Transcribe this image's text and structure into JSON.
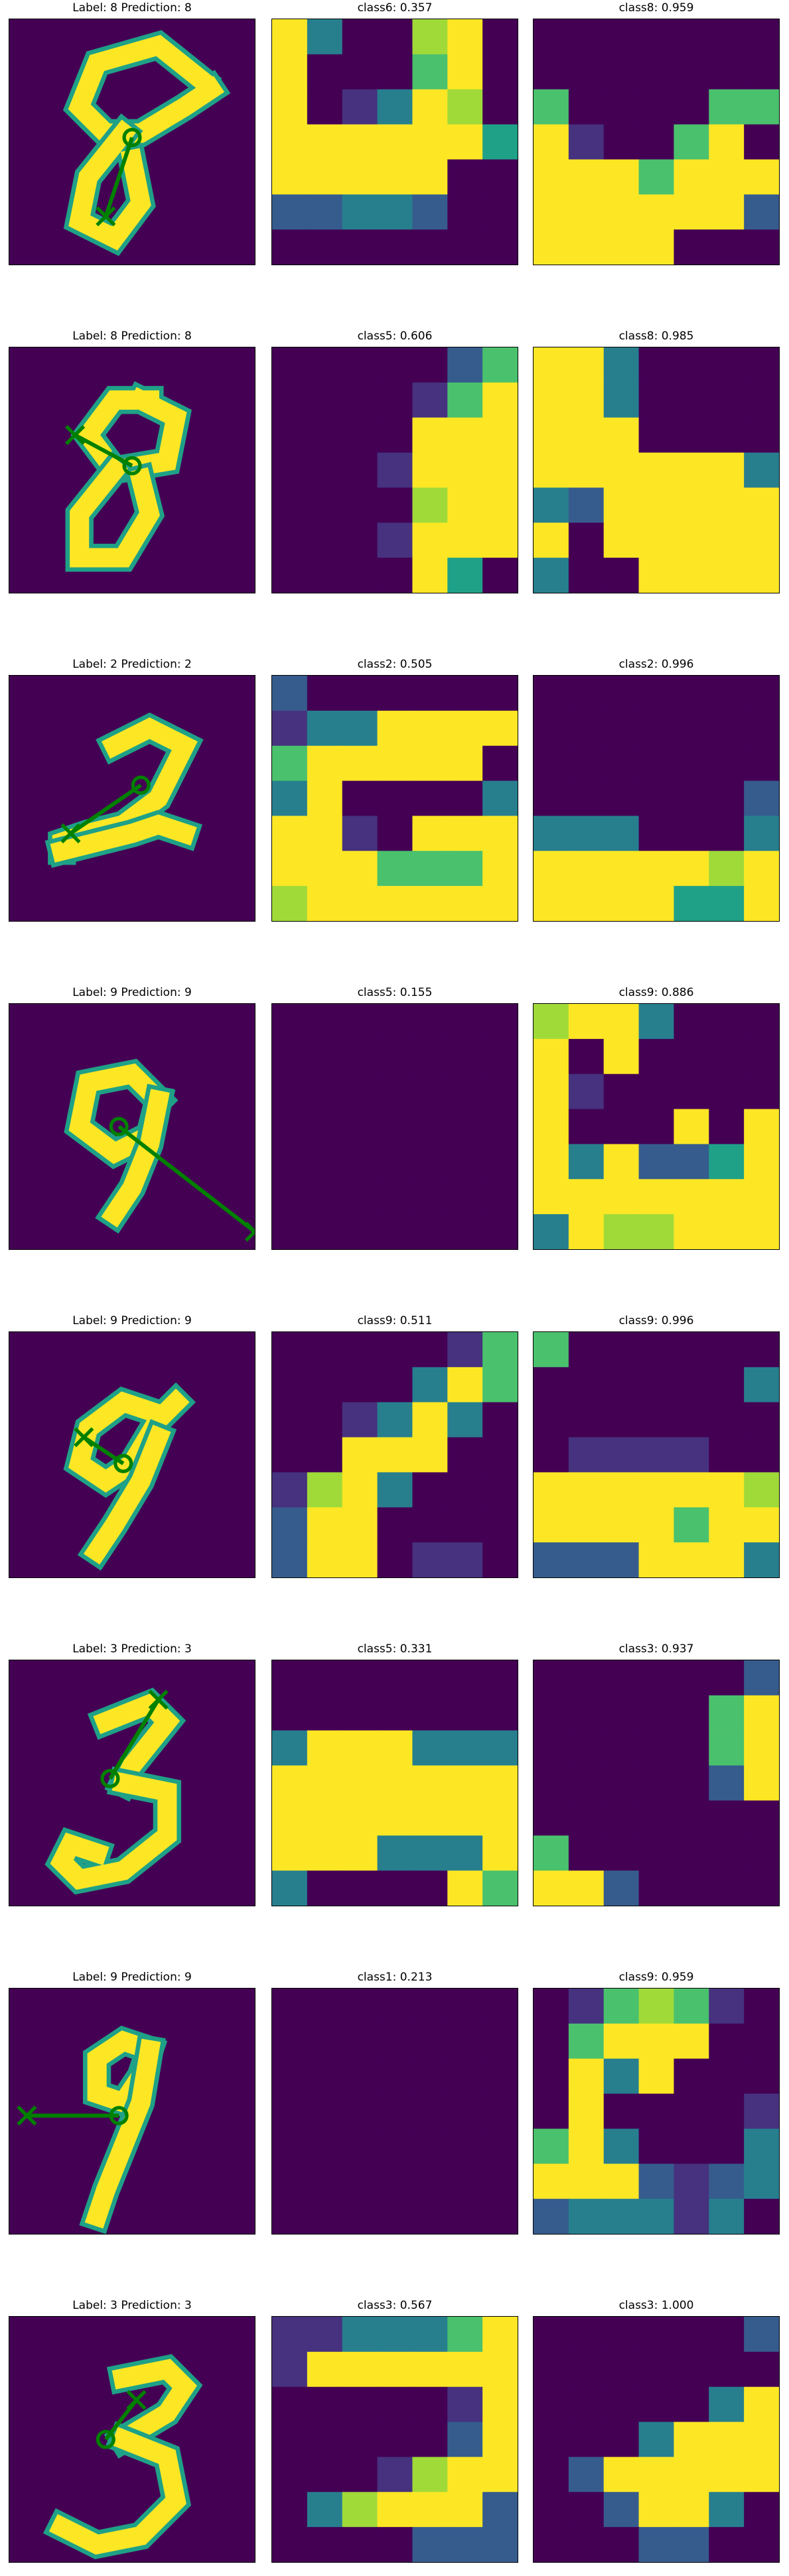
{
  "palette": {
    "dark": "#440154",
    "purple": "#46327e",
    "blue": "#365c8d",
    "teal": "#277f8e",
    "green": "#1fa187",
    "lime": "#4ac16d",
    "lightgreen": "#a0da39",
    "yellow": "#fde725",
    "marker": "#008000"
  },
  "chart_data": [
    {
      "type": "heatmap",
      "title": "Label: 8 Prediction: 8",
      "grid": "28x28 digit image",
      "markers": {
        "circle": "yes",
        "cross": "yes"
      }
    },
    {
      "type": "heatmap",
      "title": "class6: 0.357",
      "class": "class6",
      "score": 0.357
    },
    {
      "type": "heatmap",
      "title": "class8: 0.959",
      "class": "class8",
      "score": 0.959
    },
    {
      "type": "heatmap",
      "title": "Label: 8 Prediction: 8"
    },
    {
      "type": "heatmap",
      "title": "class5: 0.606",
      "class": "class5",
      "score": 0.606
    },
    {
      "type": "heatmap",
      "title": "class8: 0.985",
      "class": "class8",
      "score": 0.985
    },
    {
      "type": "heatmap",
      "title": "Label: 2 Prediction: 2"
    },
    {
      "type": "heatmap",
      "title": "class2: 0.505",
      "class": "class2",
      "score": 0.505
    },
    {
      "type": "heatmap",
      "title": "class2: 0.996",
      "class": "class2",
      "score": 0.996
    },
    {
      "type": "heatmap",
      "title": "Label: 9 Prediction: 9"
    },
    {
      "type": "heatmap",
      "title": "class5: 0.155",
      "class": "class5",
      "score": 0.155
    },
    {
      "type": "heatmap",
      "title": "class9: 0.886",
      "class": "class9",
      "score": 0.886
    },
    {
      "type": "heatmap",
      "title": "Label: 9 Prediction: 9"
    },
    {
      "type": "heatmap",
      "title": "class9: 0.511",
      "class": "class9",
      "score": 0.511
    },
    {
      "type": "heatmap",
      "title": "class9: 0.996",
      "class": "class9",
      "score": 0.996
    },
    {
      "type": "heatmap",
      "title": "Label: 3 Prediction: 3"
    },
    {
      "type": "heatmap",
      "title": "class5: 0.331",
      "class": "class5",
      "score": 0.331
    },
    {
      "type": "heatmap",
      "title": "class3: 0.937",
      "class": "class3",
      "score": 0.937
    },
    {
      "type": "heatmap",
      "title": "Label: 9 Prediction: 9"
    },
    {
      "type": "heatmap",
      "title": "class1: 0.213",
      "class": "class1",
      "score": 0.213
    },
    {
      "type": "heatmap",
      "title": "class9: 0.959",
      "class": "class9",
      "score": 0.959
    },
    {
      "type": "heatmap",
      "title": "Label: 3 Prediction: 3"
    },
    {
      "type": "heatmap",
      "title": "class3: 0.567",
      "class": "class3",
      "score": 0.567
    },
    {
      "type": "heatmap",
      "title": "class3: 1.000",
      "class": "class3",
      "score": 1.0
    }
  ],
  "rows": [
    {
      "titles": [
        "Label: 8 Prediction: 8",
        "class6: 0.357",
        "class8: 0.959"
      ]
    },
    {
      "titles": [
        "Label: 8 Prediction: 8",
        "class5: 0.606",
        "class8: 0.985"
      ]
    },
    {
      "titles": [
        "Label: 2 Prediction: 2",
        "class2: 0.505",
        "class2: 0.996"
      ]
    },
    {
      "titles": [
        "Label: 9 Prediction: 9",
        "class5: 0.155",
        "class9: 0.886"
      ]
    },
    {
      "titles": [
        "Label: 9 Prediction: 9",
        "class9: 0.511",
        "class9: 0.996"
      ]
    },
    {
      "titles": [
        "Label: 3 Prediction: 3",
        "class5: 0.331",
        "class3: 0.937"
      ]
    },
    {
      "titles": [
        "Label: 9 Prediction: 9",
        "class1: 0.213",
        "class9: 0.959"
      ]
    },
    {
      "titles": [
        "Label: 3 Prediction: 3",
        "class3: 0.567",
        "class3: 1.000"
      ]
    }
  ]
}
